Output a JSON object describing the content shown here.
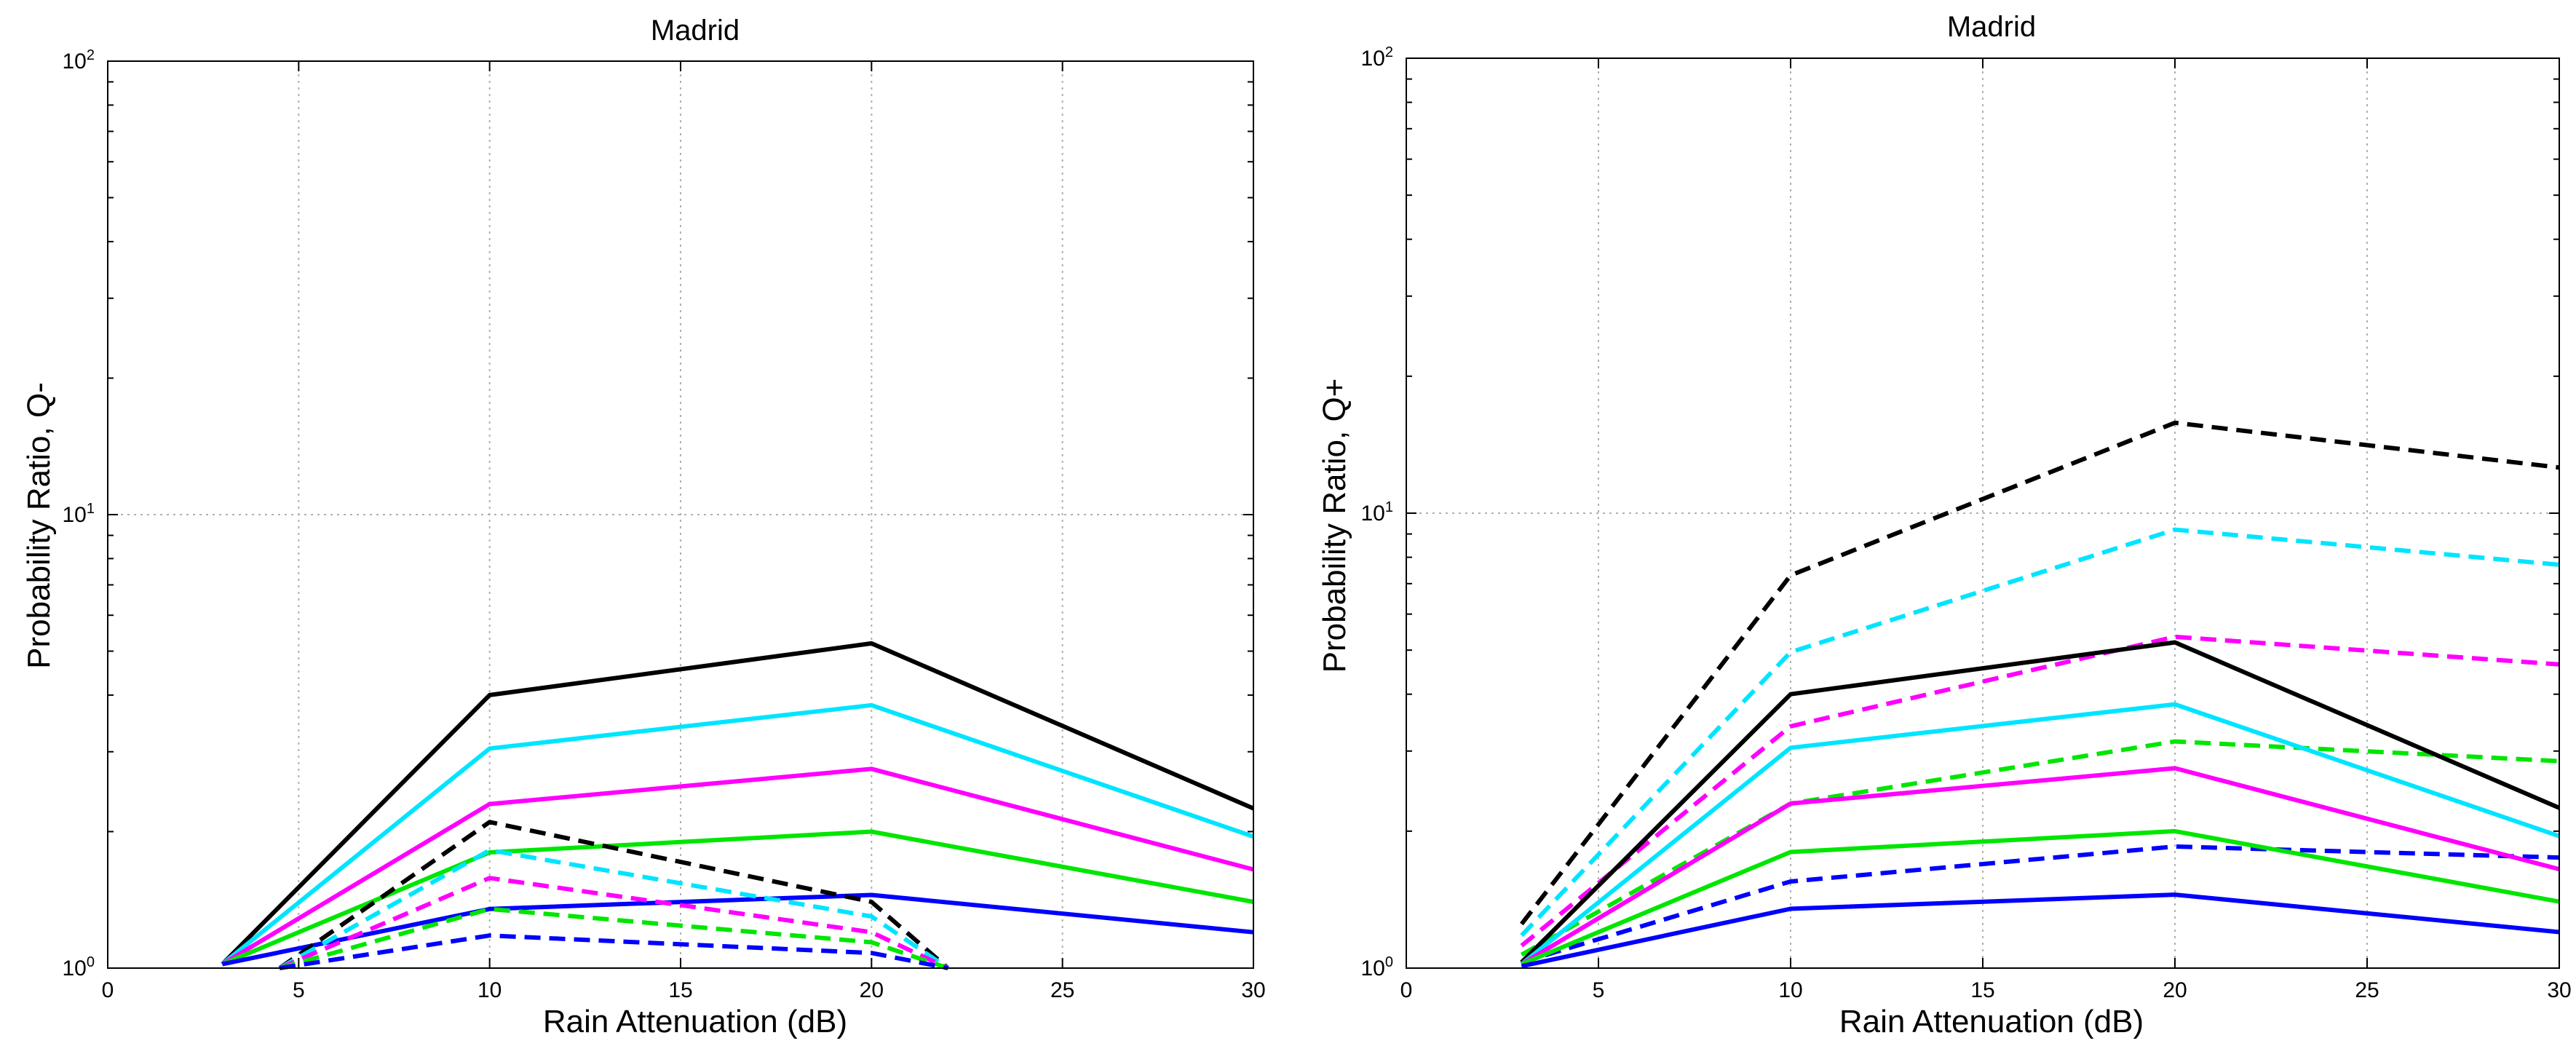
{
  "chart_data": [
    {
      "type": "line",
      "title": "Madrid",
      "xlabel": "Rain Attenuation (dB)",
      "ylabel": "Probability Ratio, Q-",
      "xlim": [
        0,
        30
      ],
      "ylim": [
        1,
        100
      ],
      "yscale": "log",
      "xticks": [
        0,
        5,
        10,
        15,
        20,
        25,
        30
      ],
      "yticks": [
        {
          "base": "10",
          "exp": "0",
          "value": 1
        },
        {
          "base": "10",
          "exp": "1",
          "value": 10
        },
        {
          "base": "10",
          "exp": "2",
          "value": 100
        }
      ],
      "grid": true,
      "series": [
        {
          "name": "black solid",
          "color": "#000000",
          "style": "solid",
          "x": [
            3,
            10,
            20,
            30
          ],
          "y": [
            1.02,
            4.0,
            5.2,
            2.25
          ]
        },
        {
          "name": "cyan solid",
          "color": "#00e5ff",
          "style": "solid",
          "x": [
            3,
            10,
            20,
            30
          ],
          "y": [
            1.02,
            3.05,
            3.8,
            1.95
          ]
        },
        {
          "name": "magenta solid",
          "color": "#ff00ff",
          "style": "solid",
          "x": [
            3,
            10,
            20,
            30
          ],
          "y": [
            1.02,
            2.3,
            2.75,
            1.65
          ]
        },
        {
          "name": "green solid",
          "color": "#00e600",
          "style": "solid",
          "x": [
            3,
            10,
            20,
            30
          ],
          "y": [
            1.02,
            1.8,
            2.0,
            1.4
          ]
        },
        {
          "name": "blue solid",
          "color": "#0000ff",
          "style": "solid",
          "x": [
            3,
            10,
            20,
            30
          ],
          "y": [
            1.02,
            1.35,
            1.45,
            1.2
          ]
        },
        {
          "name": "black dashed",
          "color": "#000000",
          "style": "dashed",
          "x": [
            4.5,
            10,
            20,
            22
          ],
          "y": [
            1.0,
            2.1,
            1.4,
            1.0
          ]
        },
        {
          "name": "cyan dashed",
          "color": "#00e5ff",
          "style": "dashed",
          "x": [
            4.5,
            10,
            20,
            22
          ],
          "y": [
            1.0,
            1.82,
            1.3,
            1.0
          ]
        },
        {
          "name": "magenta dashed",
          "color": "#ff00ff",
          "style": "dashed",
          "x": [
            4.5,
            10,
            20,
            22
          ],
          "y": [
            1.0,
            1.58,
            1.2,
            1.0
          ]
        },
        {
          "name": "green dashed",
          "color": "#00e600",
          "style": "dashed",
          "x": [
            4.5,
            10,
            20,
            22
          ],
          "y": [
            1.0,
            1.35,
            1.14,
            1.0
          ]
        },
        {
          "name": "blue dashed",
          "color": "#0000ff",
          "style": "dashed",
          "x": [
            4.5,
            10,
            20,
            22
          ],
          "y": [
            1.0,
            1.18,
            1.08,
            1.0
          ]
        }
      ]
    },
    {
      "type": "line",
      "title": "Madrid",
      "xlabel": "Rain Attenuation (dB)",
      "ylabel": "Probability Ratio, Q+",
      "xlim": [
        0,
        30
      ],
      "ylim": [
        1,
        100
      ],
      "yscale": "log",
      "xticks": [
        0,
        5,
        10,
        15,
        20,
        25,
        30
      ],
      "yticks": [
        {
          "base": "10",
          "exp": "0",
          "value": 1
        },
        {
          "base": "10",
          "exp": "1",
          "value": 10
        },
        {
          "base": "10",
          "exp": "2",
          "value": 100
        }
      ],
      "grid": true,
      "series": [
        {
          "name": "black dashed",
          "color": "#000000",
          "style": "dashed",
          "x": [
            3,
            10,
            20,
            30
          ],
          "y": [
            1.25,
            7.3,
            15.8,
            12.6
          ]
        },
        {
          "name": "cyan dashed",
          "color": "#00e5ff",
          "style": "dashed",
          "x": [
            3,
            10,
            20,
            30
          ],
          "y": [
            1.18,
            4.95,
            9.2,
            7.7
          ]
        },
        {
          "name": "magenta dashed",
          "color": "#ff00ff",
          "style": "dashed",
          "x": [
            3,
            10,
            20,
            30
          ],
          "y": [
            1.12,
            3.4,
            5.35,
            4.65
          ]
        },
        {
          "name": "green dashed",
          "color": "#00e600",
          "style": "dashed",
          "x": [
            3,
            10,
            20,
            30
          ],
          "y": [
            1.07,
            2.3,
            3.15,
            2.85
          ]
        },
        {
          "name": "blue dashed",
          "color": "#0000ff",
          "style": "dashed",
          "x": [
            3,
            10,
            20,
            30
          ],
          "y": [
            1.03,
            1.55,
            1.85,
            1.75
          ]
        },
        {
          "name": "black solid",
          "color": "#000000",
          "style": "solid",
          "x": [
            3,
            10,
            20,
            30
          ],
          "y": [
            1.03,
            4.0,
            5.2,
            2.25
          ]
        },
        {
          "name": "cyan solid",
          "color": "#00e5ff",
          "style": "solid",
          "x": [
            3,
            10,
            20,
            30
          ],
          "y": [
            1.02,
            3.05,
            3.8,
            1.95
          ]
        },
        {
          "name": "magenta solid",
          "color": "#ff00ff",
          "style": "solid",
          "x": [
            3,
            10,
            20,
            30
          ],
          "y": [
            1.02,
            2.3,
            2.75,
            1.65
          ]
        },
        {
          "name": "green solid",
          "color": "#00e600",
          "style": "solid",
          "x": [
            3,
            10,
            20,
            30
          ],
          "y": [
            1.02,
            1.8,
            2.0,
            1.4
          ]
        },
        {
          "name": "blue solid",
          "color": "#0000ff",
          "style": "solid",
          "x": [
            3,
            10,
            20,
            30
          ],
          "y": [
            1.01,
            1.35,
            1.45,
            1.2
          ]
        }
      ]
    }
  ]
}
